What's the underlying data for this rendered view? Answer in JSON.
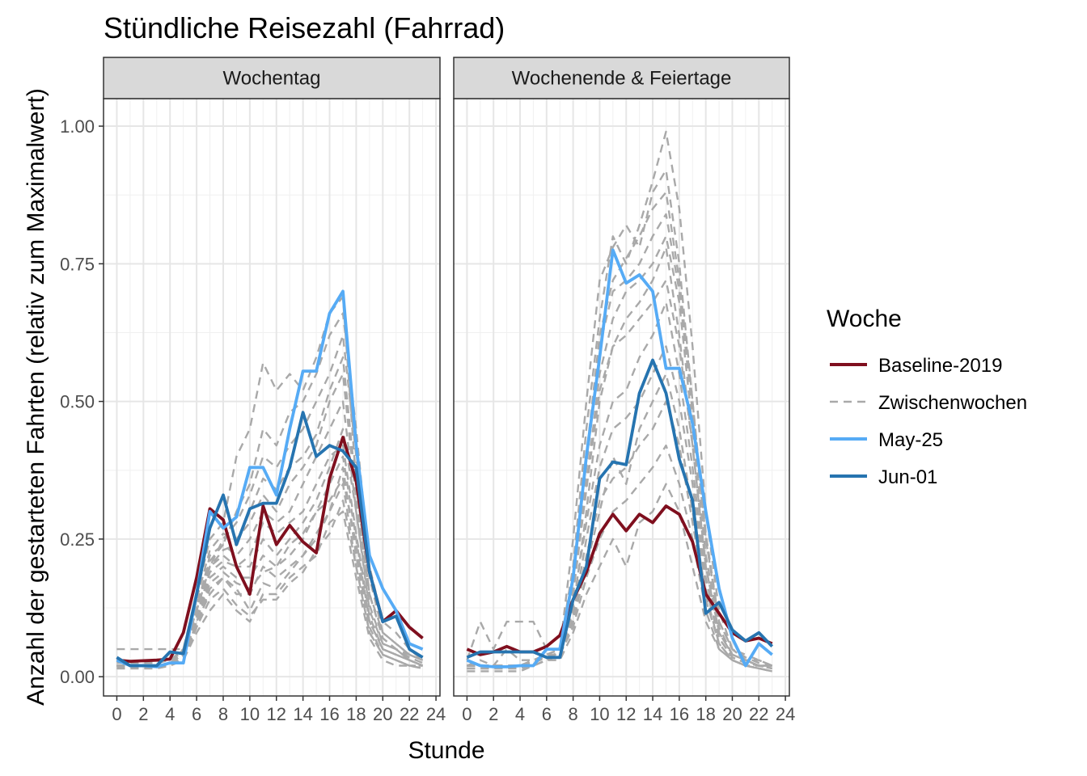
{
  "chart_data": {
    "type": "line",
    "title": "Stündliche Reisezahl (Fahrrad)",
    "xlabel": "Stunde",
    "ylabel": "Anzahl der gestarteten Fahrten (relativ zum Maximalwert)",
    "xlim": [
      -1,
      24.3
    ],
    "ylim": [
      -0.035,
      1.05
    ],
    "x_ticks": [
      0,
      2,
      4,
      6,
      8,
      10,
      12,
      14,
      16,
      18,
      20,
      22,
      24
    ],
    "x_tick_labels": [
      "0",
      "2",
      "4",
      "6",
      "8",
      "10",
      "12",
      "14",
      "16",
      "18",
      "20",
      "22",
      "24"
    ],
    "y_ticks": [
      0,
      0.25,
      0.5,
      0.75,
      1.0
    ],
    "y_tick_labels": [
      "0.00",
      "0.25",
      "0.50",
      "0.75",
      "1.00"
    ],
    "grid": true,
    "legend_position": "right",
    "legend_title": "Woche",
    "legend": [
      {
        "key": "baseline",
        "label": "Baseline-2019",
        "color": "#7f0f1e",
        "dash": "solid"
      },
      {
        "key": "zwischen",
        "label": "Zwischenwochen",
        "color": "#a9a9a9",
        "dash": "dashed"
      },
      {
        "key": "may25",
        "label": "May-25",
        "color": "#56abf5",
        "dash": "solid"
      },
      {
        "key": "jun01",
        "label": "Jun-01",
        "color": "#2674b0",
        "dash": "solid"
      }
    ],
    "panels": [
      {
        "strip": "Wochentag",
        "x": [
          0,
          1,
          2,
          3,
          4,
          5,
          6,
          7,
          8,
          9,
          10,
          11,
          12,
          13,
          14,
          15,
          16,
          17,
          18,
          19,
          20,
          21,
          22,
          23
        ],
        "series": [
          {
            "name": "Baseline-2019",
            "values": [
              0.03,
              0.028,
              0.029,
              0.03,
              0.032,
              0.08,
              0.18,
              0.305,
              0.285,
              0.2,
              0.15,
              0.31,
              0.24,
              0.275,
              0.245,
              0.225,
              0.36,
              0.435,
              0.355,
              0.19,
              0.1,
              0.12,
              0.09,
              0.07
            ]
          },
          {
            "name": "May-25",
            "values": [
              0.03,
              0.02,
              0.02,
              0.018,
              0.025,
              0.025,
              0.15,
              0.3,
              0.27,
              0.29,
              0.38,
              0.38,
              0.33,
              0.45,
              0.555,
              0.555,
              0.66,
              0.7,
              0.42,
              0.22,
              0.16,
              0.12,
              0.06,
              0.05
            ]
          },
          {
            "name": "Jun-01",
            "values": [
              0.035,
              0.02,
              0.02,
              0.02,
              0.045,
              0.042,
              0.15,
              0.27,
              0.33,
              0.24,
              0.305,
              0.315,
              0.315,
              0.38,
              0.48,
              0.4,
              0.42,
              0.41,
              0.38,
              0.19,
              0.1,
              0.11,
              0.05,
              0.035
            ]
          }
        ],
        "background_series": [
          [
            0.02,
            0.02,
            0.02,
            0.02,
            0.02,
            0.05,
            0.12,
            0.22,
            0.24,
            0.3,
            0.35,
            0.45,
            0.42,
            0.48,
            0.5,
            0.55,
            0.62,
            0.66,
            0.45,
            0.2,
            0.1,
            0.08,
            0.05,
            0.03
          ],
          [
            0.05,
            0.05,
            0.05,
            0.05,
            0.05,
            0.05,
            0.15,
            0.25,
            0.28,
            0.4,
            0.45,
            0.57,
            0.52,
            0.55,
            0.52,
            0.58,
            0.66,
            0.69,
            0.35,
            0.15,
            0.08,
            0.06,
            0.04,
            0.03
          ],
          [
            0.015,
            0.015,
            0.015,
            0.015,
            0.02,
            0.03,
            0.1,
            0.15,
            0.18,
            0.15,
            0.15,
            0.2,
            0.18,
            0.2,
            0.22,
            0.25,
            0.3,
            0.35,
            0.2,
            0.08,
            0.04,
            0.03,
            0.02,
            0.02
          ],
          [
            0.02,
            0.02,
            0.02,
            0.02,
            0.025,
            0.04,
            0.12,
            0.2,
            0.22,
            0.2,
            0.2,
            0.25,
            0.22,
            0.25,
            0.28,
            0.32,
            0.38,
            0.45,
            0.3,
            0.12,
            0.06,
            0.05,
            0.03,
            0.02
          ],
          [
            0.02,
            0.02,
            0.02,
            0.02,
            0.02,
            0.03,
            0.08,
            0.12,
            0.15,
            0.12,
            0.1,
            0.15,
            0.15,
            0.18,
            0.2,
            0.22,
            0.28,
            0.3,
            0.18,
            0.07,
            0.03,
            0.02,
            0.02,
            0.015
          ],
          [
            0.025,
            0.025,
            0.025,
            0.025,
            0.03,
            0.05,
            0.14,
            0.23,
            0.26,
            0.25,
            0.28,
            0.33,
            0.3,
            0.35,
            0.38,
            0.42,
            0.5,
            0.55,
            0.32,
            0.15,
            0.07,
            0.05,
            0.04,
            0.03
          ],
          [
            0.02,
            0.02,
            0.02,
            0.02,
            0.02,
            0.04,
            0.1,
            0.18,
            0.2,
            0.18,
            0.18,
            0.22,
            0.2,
            0.22,
            0.25,
            0.3,
            0.35,
            0.4,
            0.25,
            0.1,
            0.05,
            0.04,
            0.03,
            0.02
          ],
          [
            0.02,
            0.02,
            0.02,
            0.02,
            0.025,
            0.045,
            0.13,
            0.21,
            0.24,
            0.22,
            0.25,
            0.3,
            0.28,
            0.3,
            0.35,
            0.4,
            0.45,
            0.5,
            0.3,
            0.13,
            0.06,
            0.05,
            0.03,
            0.02
          ],
          [
            0.015,
            0.015,
            0.015,
            0.015,
            0.02,
            0.035,
            0.09,
            0.16,
            0.18,
            0.16,
            0.12,
            0.17,
            0.16,
            0.19,
            0.22,
            0.26,
            0.3,
            0.38,
            0.22,
            0.09,
            0.04,
            0.03,
            0.02,
            0.02
          ],
          [
            0.02,
            0.02,
            0.02,
            0.02,
            0.02,
            0.04,
            0.11,
            0.19,
            0.21,
            0.2,
            0.22,
            0.28,
            0.26,
            0.28,
            0.3,
            0.35,
            0.4,
            0.42,
            0.26,
            0.11,
            0.05,
            0.04,
            0.03,
            0.02
          ],
          [
            0.02,
            0.02,
            0.02,
            0.02,
            0.02,
            0.05,
            0.13,
            0.2,
            0.25,
            0.28,
            0.33,
            0.4,
            0.38,
            0.42,
            0.45,
            0.5,
            0.55,
            0.62,
            0.4,
            0.18,
            0.08,
            0.06,
            0.04,
            0.03
          ],
          [
            0.018,
            0.018,
            0.018,
            0.018,
            0.02,
            0.035,
            0.1,
            0.17,
            0.19,
            0.17,
            0.16,
            0.19,
            0.2,
            0.24,
            0.26,
            0.3,
            0.32,
            0.36,
            0.24,
            0.1,
            0.05,
            0.04,
            0.03,
            0.02
          ],
          [
            0.025,
            0.025,
            0.025,
            0.025,
            0.03,
            0.045,
            0.12,
            0.2,
            0.23,
            0.24,
            0.3,
            0.36,
            0.34,
            0.38,
            0.4,
            0.44,
            0.52,
            0.58,
            0.34,
            0.15,
            0.07,
            0.05,
            0.035,
            0.025
          ],
          [
            0.02,
            0.02,
            0.02,
            0.02,
            0.02,
            0.03,
            0.09,
            0.14,
            0.16,
            0.13,
            0.11,
            0.14,
            0.14,
            0.17,
            0.19,
            0.23,
            0.26,
            0.32,
            0.2,
            0.08,
            0.04,
            0.03,
            0.02,
            0.015
          ]
        ]
      },
      {
        "strip": "Wochenende & Feiertage",
        "x": [
          0,
          1,
          2,
          3,
          4,
          5,
          6,
          7,
          8,
          9,
          10,
          11,
          12,
          13,
          14,
          15,
          16,
          17,
          18,
          19,
          20,
          21,
          22,
          23
        ],
        "series": [
          {
            "name": "Baseline-2019",
            "values": [
              0.05,
              0.04,
              0.045,
              0.055,
              0.045,
              0.045,
              0.055,
              0.075,
              0.14,
              0.19,
              0.26,
              0.295,
              0.265,
              0.295,
              0.28,
              0.31,
              0.295,
              0.245,
              0.15,
              0.115,
              0.08,
              0.065,
              0.07,
              0.06
            ]
          },
          {
            "name": "May-25",
            "values": [
              0.03,
              0.02,
              0.018,
              0.018,
              0.02,
              0.02,
              0.05,
              0.05,
              0.18,
              0.4,
              0.58,
              0.775,
              0.715,
              0.73,
              0.7,
              0.56,
              0.56,
              0.46,
              0.3,
              0.16,
              0.07,
              0.02,
              0.06,
              0.04
            ]
          },
          {
            "name": "Jun-01",
            "values": [
              0.035,
              0.045,
              0.045,
              0.045,
              0.045,
              0.045,
              0.035,
              0.035,
              0.14,
              0.2,
              0.36,
              0.39,
              0.385,
              0.515,
              0.575,
              0.515,
              0.395,
              0.32,
              0.115,
              0.135,
              0.085,
              0.065,
              0.08,
              0.055
            ]
          }
        ],
        "background_series": [
          [
            0.02,
            0.02,
            0.02,
            0.02,
            0.02,
            0.03,
            0.04,
            0.05,
            0.2,
            0.45,
            0.65,
            0.8,
            0.75,
            0.82,
            0.9,
            0.99,
            0.85,
            0.6,
            0.3,
            0.12,
            0.05,
            0.04,
            0.03,
            0.02
          ],
          [
            0.03,
            0.1,
            0.05,
            0.1,
            0.1,
            0.1,
            0.05,
            0.05,
            0.25,
            0.5,
            0.72,
            0.78,
            0.82,
            0.78,
            0.88,
            0.92,
            0.75,
            0.5,
            0.25,
            0.1,
            0.05,
            0.03,
            0.03,
            0.02
          ],
          [
            0.02,
            0.03,
            0.02,
            0.05,
            0.03,
            0.03,
            0.04,
            0.04,
            0.12,
            0.3,
            0.5,
            0.6,
            0.65,
            0.68,
            0.72,
            0.78,
            0.62,
            0.42,
            0.2,
            0.08,
            0.04,
            0.03,
            0.02,
            0.02
          ],
          [
            0.015,
            0.015,
            0.015,
            0.015,
            0.02,
            0.02,
            0.03,
            0.04,
            0.1,
            0.2,
            0.3,
            0.4,
            0.35,
            0.45,
            0.5,
            0.55,
            0.45,
            0.3,
            0.15,
            0.06,
            0.03,
            0.02,
            0.02,
            0.015
          ],
          [
            0.02,
            0.02,
            0.02,
            0.02,
            0.02,
            0.025,
            0.04,
            0.05,
            0.15,
            0.35,
            0.55,
            0.65,
            0.7,
            0.72,
            0.75,
            0.8,
            0.68,
            0.45,
            0.22,
            0.09,
            0.04,
            0.03,
            0.02,
            0.02
          ],
          [
            0.015,
            0.015,
            0.015,
            0.015,
            0.015,
            0.02,
            0.03,
            0.03,
            0.08,
            0.15,
            0.2,
            0.25,
            0.2,
            0.28,
            0.3,
            0.35,
            0.3,
            0.2,
            0.1,
            0.05,
            0.03,
            0.02,
            0.015,
            0.01
          ],
          [
            0.02,
            0.02,
            0.02,
            0.02,
            0.02,
            0.03,
            0.04,
            0.05,
            0.16,
            0.38,
            0.6,
            0.7,
            0.72,
            0.75,
            0.8,
            0.84,
            0.7,
            0.48,
            0.25,
            0.1,
            0.05,
            0.03,
            0.02,
            0.02
          ],
          [
            0.02,
            0.02,
            0.02,
            0.02,
            0.02,
            0.03,
            0.035,
            0.045,
            0.13,
            0.28,
            0.42,
            0.5,
            0.52,
            0.58,
            0.62,
            0.68,
            0.55,
            0.38,
            0.18,
            0.07,
            0.035,
            0.025,
            0.02,
            0.015
          ],
          [
            0.02,
            0.02,
            0.02,
            0.02,
            0.02,
            0.03,
            0.04,
            0.05,
            0.17,
            0.4,
            0.62,
            0.72,
            0.76,
            0.8,
            0.85,
            0.88,
            0.72,
            0.5,
            0.26,
            0.1,
            0.05,
            0.035,
            0.025,
            0.02
          ],
          [
            0.015,
            0.015,
            0.015,
            0.015,
            0.015,
            0.02,
            0.03,
            0.04,
            0.1,
            0.22,
            0.32,
            0.36,
            0.38,
            0.42,
            0.45,
            0.5,
            0.42,
            0.28,
            0.14,
            0.06,
            0.03,
            0.02,
            0.015,
            0.01
          ],
          [
            0.02,
            0.02,
            0.02,
            0.02,
            0.02,
            0.03,
            0.04,
            0.05,
            0.15,
            0.34,
            0.52,
            0.6,
            0.62,
            0.65,
            0.68,
            0.72,
            0.6,
            0.42,
            0.2,
            0.08,
            0.04,
            0.03,
            0.02,
            0.02
          ],
          [
            0.015,
            0.015,
            0.015,
            0.015,
            0.015,
            0.025,
            0.035,
            0.04,
            0.11,
            0.25,
            0.38,
            0.45,
            0.47,
            0.5,
            0.55,
            0.6,
            0.5,
            0.35,
            0.16,
            0.07,
            0.035,
            0.025,
            0.02,
            0.015
          ],
          [
            0.01,
            0.01,
            0.01,
            0.01,
            0.01,
            0.02,
            0.03,
            0.04,
            0.09,
            0.18,
            0.25,
            0.3,
            0.32,
            0.35,
            0.38,
            0.42,
            0.35,
            0.25,
            0.12,
            0.05,
            0.03,
            0.02,
            0.015,
            0.01
          ]
        ]
      }
    ]
  }
}
